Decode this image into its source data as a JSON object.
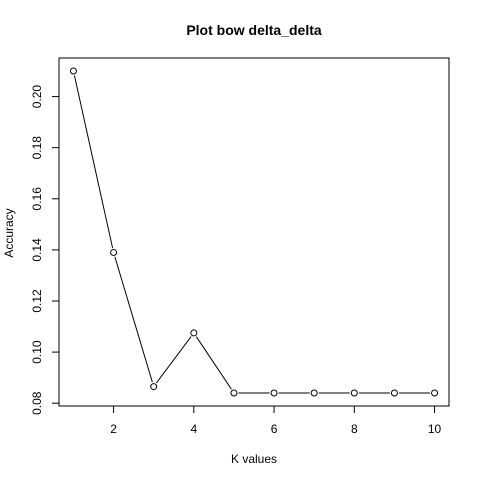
{
  "chart_data": {
    "type": "line",
    "title": "Plot bow delta_delta",
    "xlabel": "K values",
    "ylabel": "Accuracy",
    "x": [
      1,
      2,
      3,
      4,
      5,
      6,
      7,
      8,
      9,
      10
    ],
    "series": [
      {
        "values": [
          0.21,
          0.139,
          0.0865,
          0.1075,
          0.084,
          0.084,
          0.084,
          0.084,
          0.084,
          0.084
        ]
      }
    ],
    "xlim": [
      0.64,
      10.36
    ],
    "ylim": [
      0.0789,
      0.2151
    ],
    "xticks": [
      2,
      4,
      6,
      8,
      10
    ],
    "yticks": [
      0.08,
      0.1,
      0.12,
      0.14,
      0.16,
      0.18,
      0.2
    ],
    "xtick_labels": [
      "2",
      "4",
      "6",
      "8",
      "10"
    ],
    "ytick_labels": [
      "0.08",
      "0.10",
      "0.12",
      "0.14",
      "0.16",
      "0.18",
      "0.20"
    ],
    "grid": false,
    "line_color": "#000000",
    "marker": "open-circle"
  }
}
